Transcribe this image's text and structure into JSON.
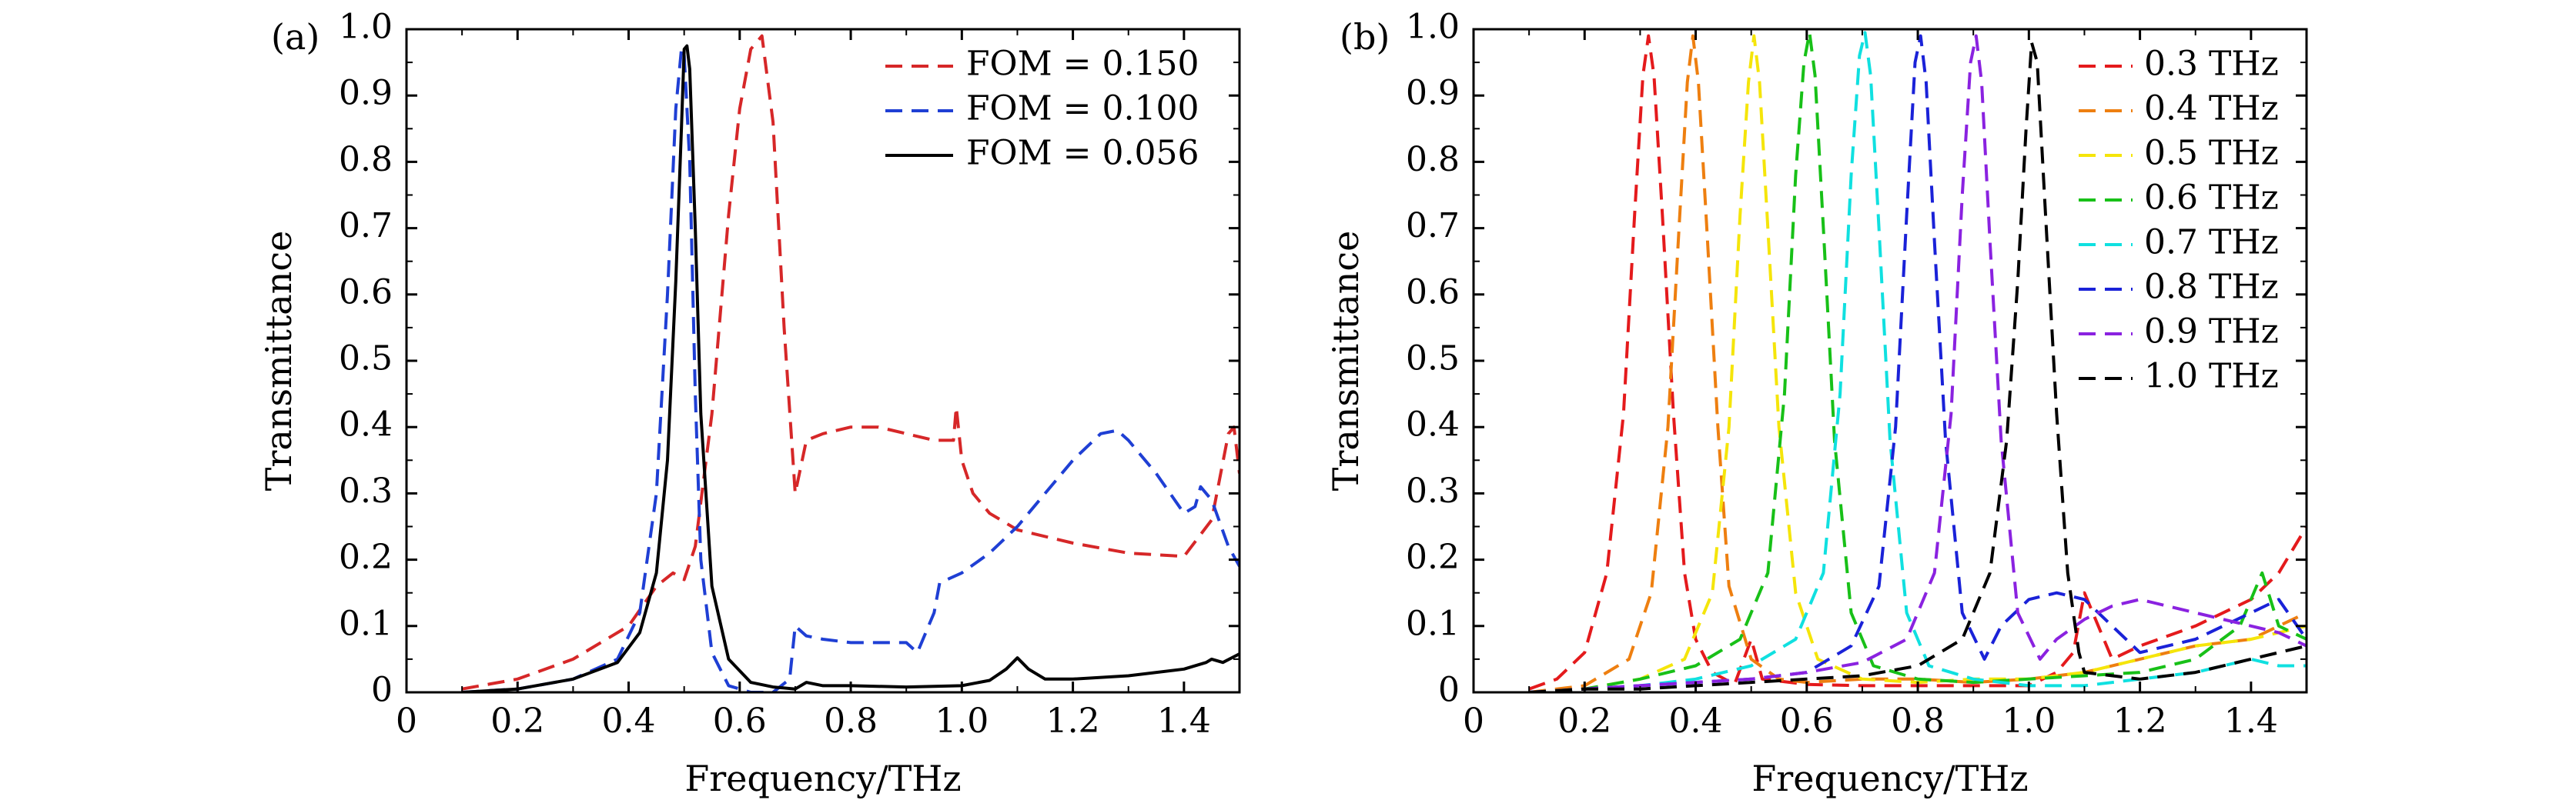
{
  "chart_data": [
    {
      "type": "line",
      "panel_label": "(a)",
      "xlabel": "Frequency/THz",
      "ylabel": "Transmittance",
      "xlim": [
        0,
        1.5
      ],
      "ylim": [
        0,
        1.0
      ],
      "x_ticks": [
        0,
        0.2,
        0.4,
        0.6,
        0.8,
        1.0,
        1.2,
        1.4
      ],
      "x_tick_labels": [
        "0",
        "0.2",
        "0.4",
        "0.6",
        "0.8",
        "1.0",
        "1.2",
        "1.4"
      ],
      "y_ticks": [
        0,
        0.1,
        0.2,
        0.3,
        0.4,
        0.5,
        0.6,
        0.7,
        0.8,
        0.9,
        1.0
      ],
      "y_tick_labels": [
        "0",
        "0.1",
        "0.2",
        "0.3",
        "0.4",
        "0.5",
        "0.6",
        "0.7",
        "0.8",
        "0.9",
        "1.0"
      ],
      "legend_position": "top-right",
      "series": [
        {
          "name": "FOM = 0.150",
          "color": "#d62728",
          "dash": "dashed",
          "x": [
            0.1,
            0.2,
            0.3,
            0.4,
            0.45,
            0.48,
            0.5,
            0.52,
            0.55,
            0.58,
            0.6,
            0.62,
            0.64,
            0.66,
            0.68,
            0.7,
            0.72,
            0.75,
            0.8,
            0.85,
            0.9,
            0.95,
            0.985,
            0.99,
            1.0,
            1.02,
            1.05,
            1.1,
            1.15,
            1.2,
            1.3,
            1.4,
            1.45,
            1.48,
            1.49,
            1.5
          ],
          "y": [
            0.005,
            0.02,
            0.05,
            0.1,
            0.16,
            0.18,
            0.17,
            0.22,
            0.42,
            0.72,
            0.88,
            0.97,
            0.99,
            0.86,
            0.55,
            0.3,
            0.38,
            0.39,
            0.4,
            0.4,
            0.39,
            0.38,
            0.38,
            0.43,
            0.35,
            0.3,
            0.27,
            0.245,
            0.235,
            0.225,
            0.21,
            0.205,
            0.26,
            0.39,
            0.4,
            0.33
          ]
        },
        {
          "name": "FOM = 0.100",
          "color": "#1f3fd4",
          "dash": "dashed",
          "x": [
            0.1,
            0.2,
            0.3,
            0.38,
            0.42,
            0.45,
            0.47,
            0.485,
            0.495,
            0.5,
            0.51,
            0.52,
            0.53,
            0.55,
            0.58,
            0.62,
            0.66,
            0.69,
            0.7,
            0.72,
            0.75,
            0.8,
            0.85,
            0.9,
            0.92,
            0.95,
            0.96,
            1.0,
            1.05,
            1.1,
            1.15,
            1.2,
            1.25,
            1.28,
            1.3,
            1.35,
            1.4,
            1.42,
            1.43,
            1.45,
            1.48,
            1.5
          ],
          "y": [
            0.0,
            0.005,
            0.02,
            0.05,
            0.12,
            0.3,
            0.6,
            0.88,
            0.97,
            0.96,
            0.8,
            0.45,
            0.2,
            0.06,
            0.01,
            0.0,
            0.0,
            0.02,
            0.1,
            0.085,
            0.08,
            0.075,
            0.075,
            0.075,
            0.06,
            0.12,
            0.165,
            0.18,
            0.21,
            0.25,
            0.3,
            0.35,
            0.39,
            0.395,
            0.38,
            0.33,
            0.27,
            0.28,
            0.31,
            0.29,
            0.22,
            0.19
          ]
        },
        {
          "name": "FOM = 0.056",
          "color": "#000000",
          "dash": "solid",
          "x": [
            0.1,
            0.2,
            0.3,
            0.38,
            0.42,
            0.45,
            0.47,
            0.485,
            0.495,
            0.5,
            0.505,
            0.51,
            0.52,
            0.53,
            0.55,
            0.58,
            0.62,
            0.66,
            0.7,
            0.72,
            0.75,
            0.8,
            0.9,
            1.0,
            1.05,
            1.08,
            1.1,
            1.12,
            1.15,
            1.2,
            1.3,
            1.4,
            1.44,
            1.45,
            1.47,
            1.5
          ],
          "y": [
            0.0,
            0.005,
            0.02,
            0.045,
            0.09,
            0.18,
            0.35,
            0.62,
            0.85,
            0.97,
            0.975,
            0.94,
            0.7,
            0.42,
            0.16,
            0.05,
            0.015,
            0.008,
            0.005,
            0.015,
            0.01,
            0.01,
            0.008,
            0.01,
            0.018,
            0.035,
            0.052,
            0.035,
            0.02,
            0.02,
            0.025,
            0.035,
            0.045,
            0.05,
            0.045,
            0.058
          ]
        }
      ]
    },
    {
      "type": "line",
      "panel_label": "(b)",
      "xlabel": "Frequency/THz",
      "ylabel": "Transmittance",
      "xlim": [
        0,
        1.5
      ],
      "ylim": [
        0,
        1.0
      ],
      "x_ticks": [
        0,
        0.2,
        0.4,
        0.6,
        0.8,
        1.0,
        1.2,
        1.4
      ],
      "x_tick_labels": [
        "0",
        "0.2",
        "0.4",
        "0.6",
        "0.8",
        "1.0",
        "1.2",
        "1.4"
      ],
      "y_ticks": [
        0,
        0.1,
        0.2,
        0.3,
        0.4,
        0.5,
        0.6,
        0.7,
        0.8,
        0.9,
        1.0
      ],
      "y_tick_labels": [
        "0",
        "0.1",
        "0.2",
        "0.3",
        "0.4",
        "0.5",
        "0.6",
        "0.7",
        "0.8",
        "0.9",
        "1.0"
      ],
      "legend_position": "top-right",
      "series": [
        {
          "name": "0.3 THz",
          "color": "#e41a1c",
          "dash": "dashed",
          "x": [
            0.1,
            0.15,
            0.2,
            0.24,
            0.27,
            0.29,
            0.305,
            0.315,
            0.325,
            0.34,
            0.36,
            0.38,
            0.4,
            0.43,
            0.47,
            0.5,
            0.52,
            0.6,
            0.7,
            0.8,
            0.9,
            1.0,
            1.05,
            1.08,
            1.1,
            1.15,
            1.2,
            1.3,
            1.4,
            1.45,
            1.5
          ],
          "y": [
            0.005,
            0.02,
            0.06,
            0.18,
            0.42,
            0.72,
            0.93,
            0.99,
            0.93,
            0.72,
            0.42,
            0.18,
            0.08,
            0.03,
            0.012,
            0.08,
            0.02,
            0.012,
            0.01,
            0.01,
            0.01,
            0.01,
            0.03,
            0.06,
            0.15,
            0.05,
            0.07,
            0.1,
            0.14,
            0.18,
            0.25
          ]
        },
        {
          "name": "0.4 THz",
          "color": "#ee7f10",
          "dash": "dashed",
          "x": [
            0.1,
            0.2,
            0.28,
            0.32,
            0.35,
            0.37,
            0.385,
            0.395,
            0.405,
            0.42,
            0.44,
            0.46,
            0.5,
            0.55,
            0.6,
            0.7,
            0.8,
            0.9,
            1.0,
            1.1,
            1.2,
            1.3,
            1.4,
            1.5
          ],
          "y": [
            0.0,
            0.01,
            0.05,
            0.15,
            0.4,
            0.7,
            0.92,
            0.99,
            0.92,
            0.7,
            0.4,
            0.16,
            0.05,
            0.02,
            0.015,
            0.02,
            0.02,
            0.015,
            0.02,
            0.03,
            0.05,
            0.07,
            0.08,
            0.12
          ]
        },
        {
          "name": "0.5 THz",
          "color": "#f5e50a",
          "dash": "dashed",
          "x": [
            0.1,
            0.2,
            0.3,
            0.38,
            0.43,
            0.46,
            0.48,
            0.495,
            0.505,
            0.515,
            0.53,
            0.55,
            0.58,
            0.62,
            0.7,
            0.8,
            0.9,
            1.0,
            1.1,
            1.2,
            1.3,
            1.4,
            1.5
          ],
          "y": [
            0.0,
            0.005,
            0.02,
            0.05,
            0.15,
            0.4,
            0.72,
            0.92,
            0.99,
            0.92,
            0.7,
            0.4,
            0.15,
            0.05,
            0.02,
            0.015,
            0.02,
            0.02,
            0.03,
            0.05,
            0.07,
            0.08,
            0.1
          ]
        },
        {
          "name": "0.6 THz",
          "color": "#18c018",
          "dash": "dashed",
          "x": [
            0.1,
            0.2,
            0.3,
            0.4,
            0.48,
            0.53,
            0.56,
            0.58,
            0.595,
            0.605,
            0.615,
            0.63,
            0.65,
            0.68,
            0.72,
            0.8,
            0.9,
            1.0,
            1.1,
            1.2,
            1.3,
            1.38,
            1.42,
            1.45,
            1.5
          ],
          "y": [
            0.0,
            0.005,
            0.02,
            0.04,
            0.08,
            0.18,
            0.45,
            0.78,
            0.95,
            0.995,
            0.93,
            0.7,
            0.38,
            0.12,
            0.04,
            0.02,
            0.015,
            0.02,
            0.025,
            0.03,
            0.05,
            0.1,
            0.18,
            0.1,
            0.08
          ]
        },
        {
          "name": "0.7 THz",
          "color": "#10e0e0",
          "dash": "dashed",
          "x": [
            0.1,
            0.2,
            0.3,
            0.4,
            0.5,
            0.58,
            0.63,
            0.66,
            0.68,
            0.695,
            0.705,
            0.715,
            0.73,
            0.75,
            0.78,
            0.82,
            0.9,
            1.0,
            1.1,
            1.2,
            1.3,
            1.4,
            1.45,
            1.5
          ],
          "y": [
            0.0,
            0.005,
            0.01,
            0.02,
            0.04,
            0.08,
            0.18,
            0.45,
            0.78,
            0.96,
            0.995,
            0.93,
            0.7,
            0.38,
            0.12,
            0.04,
            0.02,
            0.01,
            0.01,
            0.02,
            0.03,
            0.05,
            0.04,
            0.04
          ]
        },
        {
          "name": "0.8 THz",
          "color": "#1a22d8",
          "dash": "dashed",
          "x": [
            0.1,
            0.2,
            0.3,
            0.4,
            0.5,
            0.6,
            0.68,
            0.73,
            0.76,
            0.78,
            0.795,
            0.805,
            0.815,
            0.83,
            0.85,
            0.88,
            0.92,
            0.95,
            1.0,
            1.05,
            1.1,
            1.15,
            1.2,
            1.3,
            1.4,
            1.45,
            1.5
          ],
          "y": [
            0.0,
            0.005,
            0.01,
            0.015,
            0.02,
            0.03,
            0.07,
            0.16,
            0.4,
            0.72,
            0.95,
            0.99,
            0.92,
            0.68,
            0.38,
            0.12,
            0.05,
            0.1,
            0.14,
            0.15,
            0.14,
            0.1,
            0.06,
            0.08,
            0.12,
            0.14,
            0.08
          ]
        },
        {
          "name": "0.9 THz",
          "color": "#8a22e0",
          "dash": "dashed",
          "x": [
            0.1,
            0.2,
            0.3,
            0.4,
            0.5,
            0.6,
            0.7,
            0.78,
            0.83,
            0.86,
            0.88,
            0.895,
            0.905,
            0.915,
            0.93,
            0.95,
            0.98,
            1.02,
            1.05,
            1.1,
            1.15,
            1.2,
            1.3,
            1.4,
            1.45,
            1.5
          ],
          "y": [
            0.0,
            0.005,
            0.01,
            0.015,
            0.02,
            0.03,
            0.045,
            0.08,
            0.18,
            0.42,
            0.75,
            0.95,
            0.99,
            0.92,
            0.68,
            0.38,
            0.12,
            0.05,
            0.08,
            0.11,
            0.13,
            0.14,
            0.12,
            0.1,
            0.09,
            0.07
          ]
        },
        {
          "name": "1.0 THz",
          "color": "#000000",
          "dash": "dashed",
          "x": [
            0.1,
            0.2,
            0.3,
            0.4,
            0.5,
            0.6,
            0.7,
            0.8,
            0.88,
            0.93,
            0.96,
            0.98,
            0.995,
            1.005,
            1.015,
            1.03,
            1.05,
            1.07,
            1.09,
            1.1,
            1.2,
            1.3,
            1.4,
            1.45,
            1.5
          ],
          "y": [
            0.0,
            0.005,
            0.005,
            0.01,
            0.015,
            0.02,
            0.025,
            0.04,
            0.08,
            0.18,
            0.38,
            0.62,
            0.85,
            0.98,
            0.95,
            0.72,
            0.42,
            0.18,
            0.06,
            0.03,
            0.02,
            0.03,
            0.05,
            0.06,
            0.07
          ]
        }
      ]
    }
  ]
}
